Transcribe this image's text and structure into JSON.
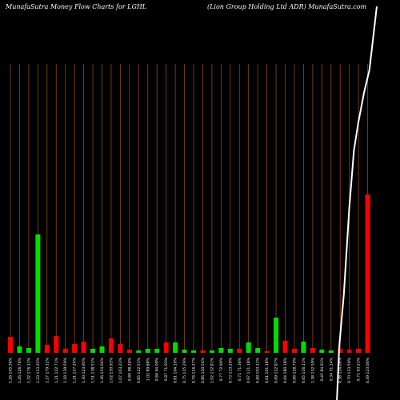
{
  "header": {
    "left": "MunafaSutra  Money Flow  Charts for LGHL",
    "right": "(Lion  Group Holding Ltd ADR) MunafaSutra.com"
  },
  "colors": {
    "background": "#000000",
    "grid": "#8b4a12",
    "up": "#00dd00",
    "down": "#ff0000",
    "line": "#ffffff"
  },
  "chart_data": {
    "type": "bar",
    "title": "",
    "xlabel": "",
    "ylabel": "",
    "grid": true,
    "bar_colors": [
      "red",
      "green",
      "green",
      "green",
      "red",
      "red",
      "red",
      "red",
      "red",
      "green",
      "green",
      "red",
      "red",
      "red",
      "green",
      "green",
      "green",
      "red",
      "green",
      "green",
      "green",
      "red",
      "green",
      "green",
      "green",
      "red",
      "green",
      "green",
      "red",
      "green",
      "red",
      "red",
      "green",
      "red",
      "green",
      "green",
      "red",
      "red",
      "red",
      "red"
    ],
    "bar_heights": [
      20,
      8,
      6,
      148,
      10,
      21,
      5,
      11,
      14,
      5,
      8,
      18,
      11,
      4,
      3,
      5,
      5,
      13,
      13,
      4,
      3,
      3,
      3,
      6,
      5,
      5,
      13,
      6,
      2,
      44,
      15,
      5,
      14,
      6,
      4,
      3,
      5,
      4,
      5,
      198
    ],
    "line_points": [
      [
        35.6,
        -100
      ],
      [
        35.9,
        10
      ],
      [
        36.4,
        100
      ],
      [
        37.0,
        250
      ],
      [
        37.5,
        350
      ],
      [
        38.0,
        400
      ],
      [
        38.6,
        450
      ],
      [
        39.2,
        490
      ],
      [
        40,
        600
      ]
    ],
    "categories": [
      "1.26 105.36%",
      "1.26 126.76%",
      "1.32 176.11%",
      "1.23 113.25%",
      "1.27 179.12%",
      "1.21 122.71%",
      "1.18 139.59%",
      "1.21 127.24%",
      "1.30 123.95%",
      "1.51 138.51%",
      "1.46 154.04%",
      "1.02 130.93%",
      "1.07 103.23%",
      "0.80 98.26%",
      "0.85 122.51%",
      "1.02 89.88%",
      "0.86 94.09%",
      "0.87 71.03%",
      "0.81 104.10%",
      "0.75 115.29%",
      "0.76 116.27%",
      "0.86 120.54%",
      "1.02 132.81%",
      "0.77 72.90%",
      "0.73 133.29%",
      "0.71 71.36%",
      "0.97 111.18%",
      "0.69 103.11%",
      "0.61 101.18%",
      "0.69 122.87%",
      "0.64 180.18%",
      "0.66 128.70%",
      "0.65 116.11%",
      "1.38 152.59%",
      "0.45 84.91%",
      "0.34 51.14%",
      "0.38 124.06%",
      "0.70 123.59%",
      "0.71 93.21%",
      "0.49 123.00%"
    ]
  }
}
